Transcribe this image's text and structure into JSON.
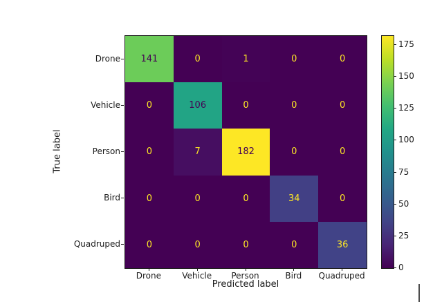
{
  "chart_data": {
    "type": "heatmap",
    "subtype": "confusion-matrix",
    "title": "",
    "xlabel": "Predicted label",
    "ylabel": "True label",
    "categories": [
      "Drone",
      "Vehicle",
      "Person",
      "Bird",
      "Quadruped"
    ],
    "matrix": [
      [
        141,
        0,
        1,
        0,
        0
      ],
      [
        0,
        106,
        0,
        0,
        0
      ],
      [
        0,
        7,
        182,
        0,
        0
      ],
      [
        0,
        0,
        0,
        34,
        0
      ],
      [
        0,
        0,
        0,
        0,
        36
      ]
    ],
    "vmin": 0,
    "vmax": 182,
    "colormap": "viridis",
    "colormap_stops": [
      "#440154",
      "#482475",
      "#414487",
      "#355f8d",
      "#29788e",
      "#21918c",
      "#22a884",
      "#44bf70",
      "#7ad151",
      "#bddf26",
      "#fde725"
    ],
    "colorbar_ticks": [
      0,
      25,
      50,
      75,
      100,
      125,
      150,
      175
    ],
    "colorbar_position": "right",
    "annotation_colors": {
      "on_dark": "#fde725",
      "on_light": "#440154"
    },
    "grid": false
  }
}
